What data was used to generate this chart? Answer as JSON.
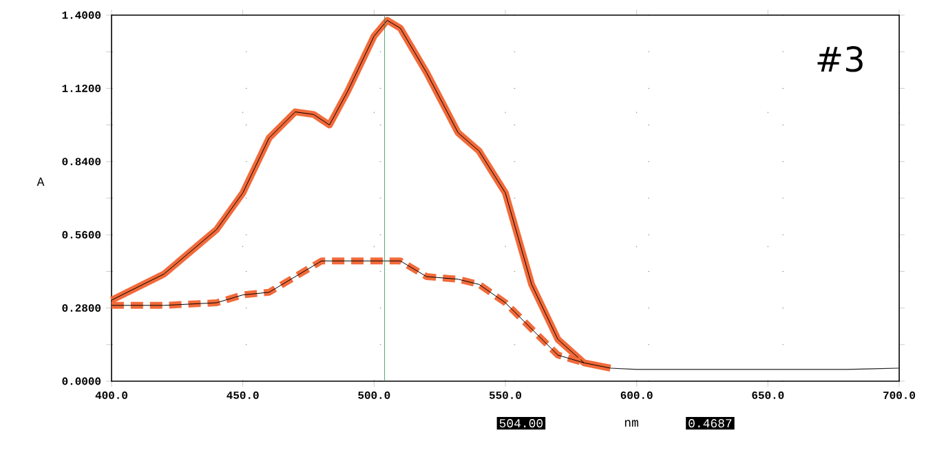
{
  "chart_data": {
    "type": "line",
    "ylabel": "A",
    "xlim": [
      400,
      700
    ],
    "ylim": [
      0,
      1.4
    ],
    "xticks": [
      {
        "value": 400,
        "label": "400.0"
      },
      {
        "value": 450,
        "label": "450.0"
      },
      {
        "value": 500,
        "label": "500.0"
      },
      {
        "value": 550,
        "label": "550.0"
      },
      {
        "value": 600,
        "label": "600.0"
      },
      {
        "value": 650,
        "label": "650.0"
      },
      {
        "value": 700,
        "label": "700.0"
      }
    ],
    "yticks": [
      {
        "value": 0,
        "label": "0.0000"
      },
      {
        "value": 0.14,
        "label": null
      },
      {
        "value": 0.28,
        "label": "0.2800"
      },
      {
        "value": 0.42,
        "label": null
      },
      {
        "value": 0.56,
        "label": "0.5600"
      },
      {
        "value": 0.7,
        "label": null
      },
      {
        "value": 0.84,
        "label": "0.8400"
      },
      {
        "value": 0.98,
        "label": null
      },
      {
        "value": 1.12,
        "label": "1.1200"
      },
      {
        "value": 1.26,
        "label": null
      },
      {
        "value": 1.4,
        "label": "1.4000"
      }
    ],
    "grid": true,
    "series": [
      {
        "color": "#f26a3a",
        "line_style": "solid",
        "x": [
          400,
          420,
          440,
          450,
          460,
          470,
          477,
          483,
          490,
          500,
          505,
          510,
          520,
          532,
          540,
          550,
          560,
          570,
          580,
          590
        ],
        "values": [
          0.31,
          0.41,
          0.58,
          0.72,
          0.93,
          1.03,
          1.02,
          0.98,
          1.11,
          1.32,
          1.38,
          1.35,
          1.18,
          0.95,
          0.88,
          0.72,
          0.37,
          0.16,
          0.07,
          0.05
        ]
      },
      {
        "color": "#f26a3a",
        "line_style": "dashed",
        "x": [
          400,
          420,
          440,
          450,
          460,
          470,
          480,
          490,
          500,
          510,
          520,
          532,
          540,
          550,
          560,
          570,
          580
        ],
        "values": [
          0.29,
          0.29,
          0.3,
          0.33,
          0.34,
          0.4,
          0.46,
          0.46,
          0.46,
          0.46,
          0.4,
          0.39,
          0.37,
          0.3,
          0.2,
          0.1,
          0.07
        ]
      },
      {
        "color": "#222222",
        "line_style": "solid",
        "x": [
          590,
          600,
          620,
          640,
          660,
          680,
          700
        ],
        "values": [
          0.05,
          0.045,
          0.045,
          0.045,
          0.045,
          0.045,
          0.05
        ]
      }
    ],
    "ref_lines": [
      {
        "axis": "x",
        "value": 504,
        "color": "#2e8b57"
      }
    ],
    "annotations": [
      "#3",
      "504.00",
      "nm",
      "0.4687"
    ]
  }
}
